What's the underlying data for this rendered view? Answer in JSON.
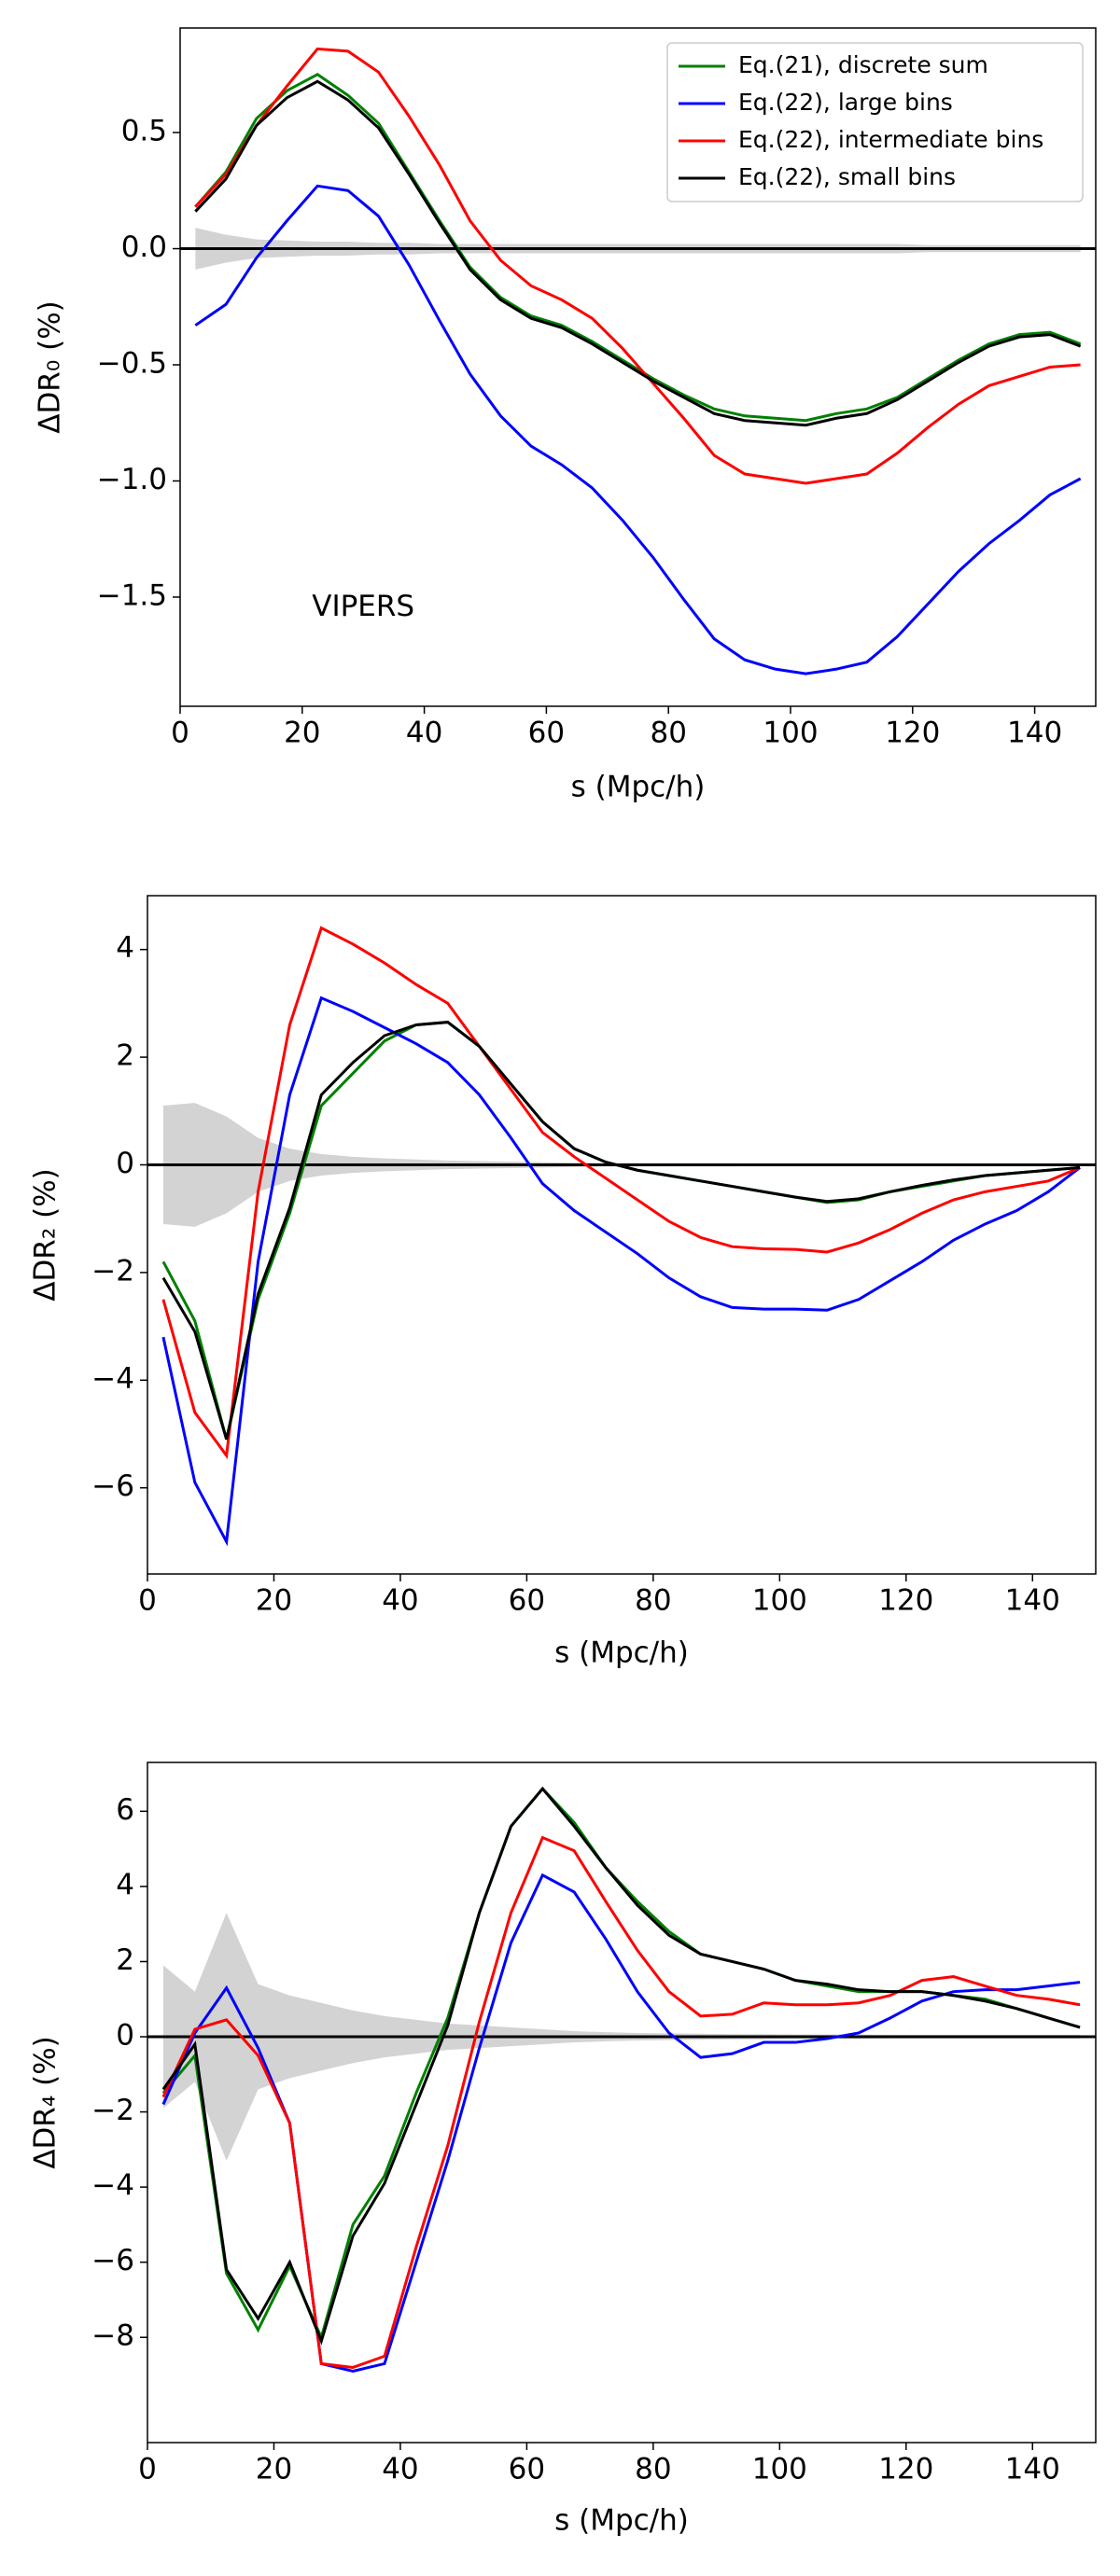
{
  "chart_data": [
    {
      "type": "line",
      "x": [
        2.5,
        7.5,
        12.5,
        17.5,
        22.5,
        27.5,
        32.5,
        37.5,
        42.5,
        47.5,
        52.5,
        57.5,
        62.5,
        67.5,
        72.5,
        77.5,
        82.5,
        87.5,
        92.5,
        97.5,
        102.5,
        107.5,
        112.5,
        117.5,
        122.5,
        127.5,
        132.5,
        137.5,
        142.5,
        147.5
      ],
      "xlim": [
        0,
        150
      ],
      "xticks": [
        0,
        20,
        40,
        60,
        80,
        100,
        120,
        140
      ],
      "ylim": [
        -1.97,
        0.95
      ],
      "yticks": [
        {
          "value": -1.5,
          "label": "−1.5"
        },
        {
          "value": -1.0,
          "label": "−1.0"
        },
        {
          "value": -0.5,
          "label": "−0.5"
        },
        {
          "value": 0.0,
          "label": "0.0"
        },
        {
          "value": 0.5,
          "label": "0.5"
        }
      ],
      "xlabel": "s (Mpc/h)",
      "ylabel": "ΔDR₀ (%)",
      "annotation": "VIPERS",
      "legend": "upper right",
      "band": {
        "color": "#d3d3d3",
        "values": [
          0.09,
          0.06,
          0.04,
          0.035,
          0.03,
          0.03,
          0.025,
          0.025,
          0.02,
          0.02,
          0.02,
          0.02,
          0.02,
          0.02,
          0.02,
          0.02,
          0.02,
          0.02,
          0.02,
          0.02,
          0.02,
          0.02,
          0.02,
          0.02,
          0.015,
          0.015,
          0.015,
          0.015,
          0.015,
          0.015
        ]
      },
      "series": [
        {
          "name": "Eq.(21), discrete sum",
          "color": "#008000",
          "values": [
            0.18,
            0.33,
            0.56,
            0.68,
            0.75,
            0.66,
            0.54,
            0.33,
            0.12,
            -0.08,
            -0.21,
            -0.29,
            -0.33,
            -0.4,
            -0.48,
            -0.56,
            -0.63,
            -0.69,
            -0.72,
            -0.73,
            -0.74,
            -0.71,
            -0.69,
            -0.64,
            -0.56,
            -0.48,
            -0.41,
            -0.37,
            -0.36,
            -0.41
          ]
        },
        {
          "name": "Eq.(22), large bins",
          "color": "#0000ff",
          "values": [
            -0.33,
            -0.24,
            -0.04,
            0.12,
            0.27,
            0.25,
            0.14,
            -0.07,
            -0.31,
            -0.54,
            -0.72,
            -0.85,
            -0.93,
            -1.03,
            -1.17,
            -1.33,
            -1.51,
            -1.68,
            -1.77,
            -1.81,
            -1.83,
            -1.81,
            -1.78,
            -1.67,
            -1.53,
            -1.39,
            -1.27,
            -1.17,
            -1.06,
            -0.99
          ]
        },
        {
          "name": "Eq.(22), intermediate bins",
          "color": "#ff0000",
          "values": [
            0.18,
            0.32,
            0.53,
            0.7,
            0.86,
            0.85,
            0.76,
            0.57,
            0.36,
            0.12,
            -0.05,
            -0.16,
            -0.22,
            -0.3,
            -0.43,
            -0.58,
            -0.73,
            -0.89,
            -0.97,
            -0.99,
            -1.01,
            -0.99,
            -0.97,
            -0.88,
            -0.77,
            -0.67,
            -0.59,
            -0.55,
            -0.51,
            -0.5
          ]
        },
        {
          "name": "Eq.(22), small bins",
          "color": "#000000",
          "values": [
            0.16,
            0.3,
            0.53,
            0.65,
            0.72,
            0.64,
            0.52,
            0.32,
            0.11,
            -0.09,
            -0.22,
            -0.3,
            -0.34,
            -0.41,
            -0.49,
            -0.57,
            -0.64,
            -0.71,
            -0.74,
            -0.75,
            -0.76,
            -0.73,
            -0.71,
            -0.65,
            -0.57,
            -0.49,
            -0.42,
            -0.38,
            -0.37,
            -0.42
          ]
        }
      ]
    },
    {
      "type": "line",
      "x": [
        2.5,
        7.5,
        12.5,
        17.5,
        22.5,
        27.5,
        32.5,
        37.5,
        42.5,
        47.5,
        52.5,
        57.5,
        62.5,
        67.5,
        72.5,
        77.5,
        82.5,
        87.5,
        92.5,
        97.5,
        102.5,
        107.5,
        112.5,
        117.5,
        122.5,
        127.5,
        132.5,
        137.5,
        142.5,
        147.5
      ],
      "xlim": [
        0,
        150
      ],
      "xticks": [
        0,
        20,
        40,
        60,
        80,
        100,
        120,
        140
      ],
      "ylim": [
        -7.6,
        5.0
      ],
      "yticks": [
        {
          "value": -6,
          "label": "−6"
        },
        {
          "value": -4,
          "label": "−4"
        },
        {
          "value": -2,
          "label": "−2"
        },
        0,
        2,
        4
      ],
      "xlabel": "s (Mpc/h)",
      "ylabel": "ΔDR₂ (%)",
      "band": {
        "color": "#d3d3d3",
        "values": [
          1.1,
          1.15,
          0.9,
          0.5,
          0.3,
          0.2,
          0.15,
          0.12,
          0.1,
          0.08,
          0.07,
          0.06,
          0.05,
          0.04,
          0.03,
          0.03,
          0.03,
          0.03,
          0.03,
          0.02,
          0.02,
          0.02,
          0.02,
          0.02,
          0.02,
          0.02,
          0.02,
          0.02,
          0.02,
          0.02
        ]
      },
      "series": [
        {
          "color": "#008000",
          "values": [
            -1.8,
            -2.9,
            -5.1,
            -2.5,
            -0.9,
            1.1,
            1.7,
            2.3,
            2.6,
            2.65,
            2.2,
            1.5,
            0.8,
            0.3,
            0.05,
            -0.1,
            -0.2,
            -0.3,
            -0.4,
            -0.5,
            -0.6,
            -0.7,
            -0.65,
            -0.5,
            -0.4,
            -0.3,
            -0.2,
            -0.15,
            -0.1,
            -0.05
          ]
        },
        {
          "color": "#0000ff",
          "values": [
            -3.2,
            -5.9,
            -7.0,
            -1.8,
            1.3,
            3.1,
            2.85,
            2.55,
            2.25,
            1.9,
            1.3,
            0.5,
            -0.35,
            -0.85,
            -1.25,
            -1.65,
            -2.1,
            -2.45,
            -2.65,
            -2.68,
            -2.68,
            -2.7,
            -2.5,
            -2.15,
            -1.8,
            -1.4,
            -1.1,
            -0.85,
            -0.5,
            -0.05
          ]
        },
        {
          "color": "#ff0000",
          "values": [
            -2.5,
            -4.6,
            -5.4,
            -0.5,
            2.6,
            4.4,
            4.1,
            3.75,
            3.35,
            3.0,
            2.2,
            1.4,
            0.6,
            0.15,
            -0.25,
            -0.65,
            -1.05,
            -1.35,
            -1.52,
            -1.56,
            -1.57,
            -1.62,
            -1.45,
            -1.2,
            -0.9,
            -0.65,
            -0.5,
            -0.4,
            -0.3,
            -0.05
          ]
        },
        {
          "color": "#000000",
          "values": [
            -2.1,
            -3.1,
            -5.1,
            -2.4,
            -0.8,
            1.3,
            1.9,
            2.4,
            2.6,
            2.65,
            2.2,
            1.5,
            0.8,
            0.3,
            0.05,
            -0.1,
            -0.2,
            -0.3,
            -0.4,
            -0.5,
            -0.6,
            -0.68,
            -0.63,
            -0.5,
            -0.38,
            -0.28,
            -0.2,
            -0.15,
            -0.1,
            -0.05
          ]
        }
      ]
    },
    {
      "type": "line",
      "x": [
        2.5,
        7.5,
        12.5,
        17.5,
        22.5,
        27.5,
        32.5,
        37.5,
        42.5,
        47.5,
        52.5,
        57.5,
        62.5,
        67.5,
        72.5,
        77.5,
        82.5,
        87.5,
        92.5,
        97.5,
        102.5,
        107.5,
        112.5,
        117.5,
        122.5,
        127.5,
        132.5,
        137.5,
        142.5,
        147.5
      ],
      "xlim": [
        0,
        150
      ],
      "xticks": [
        0,
        20,
        40,
        60,
        80,
        100,
        120,
        140
      ],
      "ylim": [
        -10.8,
        7.3
      ],
      "yticks": [
        {
          "value": -8,
          "label": "−8"
        },
        {
          "value": -6,
          "label": "−6"
        },
        {
          "value": -4,
          "label": "−4"
        },
        {
          "value": -2,
          "label": "−2"
        },
        0,
        2,
        4,
        6
      ],
      "xlabel": "s (Mpc/h)",
      "ylabel": "ΔDR₄ (%)",
      "band": {
        "color": "#d3d3d3",
        "values": [
          1.9,
          1.2,
          3.3,
          1.4,
          1.1,
          0.9,
          0.7,
          0.55,
          0.45,
          0.35,
          0.3,
          0.25,
          0.2,
          0.15,
          0.12,
          0.1,
          0.09,
          0.08,
          0.07,
          0.07,
          0.06,
          0.06,
          0.06,
          0.05,
          0.05,
          0.05,
          0.05,
          0.05,
          0.05,
          0.05
        ]
      },
      "series": [
        {
          "color": "#008000",
          "values": [
            -1.5,
            -0.5,
            -6.3,
            -7.8,
            -6.1,
            -8.0,
            -5.0,
            -3.7,
            -1.5,
            0.5,
            3.3,
            5.6,
            6.6,
            5.7,
            4.5,
            3.6,
            2.8,
            2.2,
            2.0,
            1.8,
            1.5,
            1.35,
            1.2,
            1.2,
            1.2,
            1.1,
            1.0,
            0.75,
            0.5,
            0.25
          ]
        },
        {
          "color": "#0000ff",
          "values": [
            -1.8,
            0.1,
            1.3,
            -0.3,
            -2.3,
            -8.7,
            -8.9,
            -8.7,
            -6.0,
            -3.3,
            -0.3,
            2.5,
            4.3,
            3.85,
            2.6,
            1.2,
            0.1,
            -0.55,
            -0.45,
            -0.15,
            -0.15,
            -0.05,
            0.1,
            0.5,
            0.95,
            1.2,
            1.25,
            1.25,
            1.35,
            1.45
          ]
        },
        {
          "color": "#ff0000",
          "values": [
            -1.6,
            0.2,
            0.45,
            -0.5,
            -2.3,
            -8.7,
            -8.8,
            -8.5,
            -5.6,
            -2.9,
            0.4,
            3.3,
            5.3,
            4.95,
            3.6,
            2.3,
            1.2,
            0.55,
            0.6,
            0.9,
            0.85,
            0.85,
            0.9,
            1.1,
            1.5,
            1.6,
            1.35,
            1.1,
            1.0,
            0.85
          ]
        },
        {
          "color": "#000000",
          "values": [
            -1.4,
            -0.2,
            -6.2,
            -7.5,
            -6.0,
            -8.1,
            -5.3,
            -3.9,
            -1.8,
            0.3,
            3.3,
            5.6,
            6.6,
            5.6,
            4.5,
            3.5,
            2.7,
            2.2,
            2.0,
            1.8,
            1.5,
            1.4,
            1.25,
            1.2,
            1.2,
            1.1,
            0.95,
            0.75,
            0.5,
            0.25
          ]
        }
      ]
    }
  ]
}
